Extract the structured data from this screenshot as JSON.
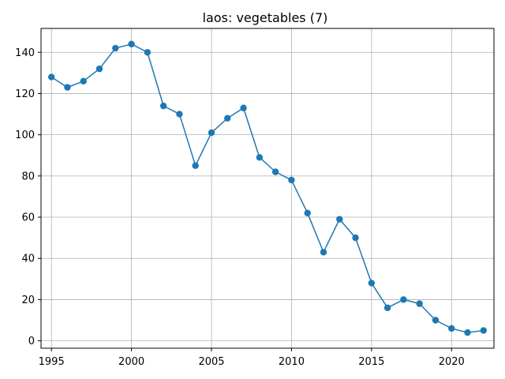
{
  "chart_data": {
    "type": "line",
    "title": "laos: vegetables (7)",
    "xlabel": "",
    "ylabel": "",
    "x": [
      1995,
      1996,
      1997,
      1998,
      1999,
      2000,
      2001,
      2002,
      2003,
      2004,
      2005,
      2006,
      2007,
      2008,
      2009,
      2010,
      2011,
      2012,
      2013,
      2014,
      2015,
      2016,
      2017,
      2018,
      2019,
      2020,
      2021,
      2022
    ],
    "series": [
      {
        "values": [
          128,
          123,
          126,
          132,
          142,
          144,
          140,
          114,
          110,
          85,
          101,
          108,
          113,
          89,
          82,
          78,
          62,
          43,
          59,
          50,
          28,
          16,
          20,
          18,
          10,
          6,
          4,
          5
        ],
        "color": "#1f77b4",
        "marker": "circle"
      }
    ],
    "xlim": [
      1994.35,
      2022.65
    ],
    "ylim": [
      -3.6,
      151.6
    ],
    "xticks": [
      1995,
      2000,
      2005,
      2010,
      2015,
      2020
    ],
    "yticks": [
      0,
      20,
      40,
      60,
      80,
      100,
      120,
      140
    ],
    "grid": true
  }
}
